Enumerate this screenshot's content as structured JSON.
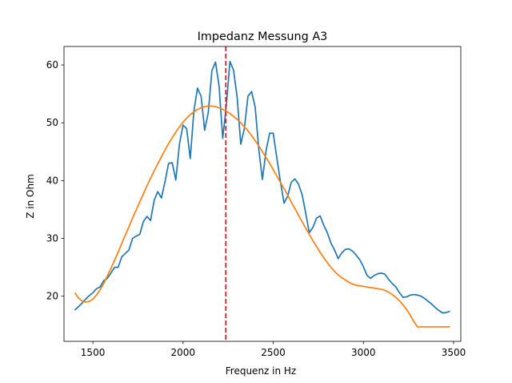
{
  "chart_data": {
    "type": "line",
    "title": "Impedanz Messung A3",
    "xlabel": "Frequenz in Hz",
    "ylabel": "Z in Ohm",
    "xlim": [
      1340,
      3540
    ],
    "ylim": [
      12.2,
      63.2
    ],
    "xticks": [
      1500,
      2000,
      2500,
      3000,
      3500
    ],
    "yticks": [
      20,
      30,
      40,
      50,
      60
    ],
    "grid": false,
    "series": [
      {
        "color": "#1f77b4",
        "x": [
          1400,
          1420,
          1440,
          1460,
          1480,
          1500,
          1520,
          1540,
          1560,
          1580,
          1600,
          1620,
          1640,
          1660,
          1680,
          1700,
          1720,
          1740,
          1760,
          1780,
          1800,
          1820,
          1840,
          1860,
          1880,
          1900,
          1920,
          1940,
          1960,
          1980,
          2000,
          2020,
          2040,
          2060,
          2080,
          2100,
          2120,
          2140,
          2160,
          2180,
          2200,
          2220,
          2240,
          2260,
          2280,
          2300,
          2320,
          2340,
          2360,
          2380,
          2400,
          2420,
          2440,
          2460,
          2480,
          2500,
          2520,
          2540,
          2560,
          2580,
          2600,
          2620,
          2640,
          2660,
          2680,
          2700,
          2720,
          2740,
          2760,
          2780,
          2800,
          2820,
          2840,
          2860,
          2880,
          2900,
          2920,
          2940,
          2960,
          2980,
          3000,
          3020,
          3040,
          3060,
          3080,
          3100,
          3120,
          3140,
          3160,
          3180,
          3200,
          3220,
          3240,
          3260,
          3280,
          3300,
          3320,
          3340,
          3360,
          3380,
          3400,
          3420,
          3440,
          3460,
          3480
        ],
        "y": [
          17.6,
          18.2,
          18.8,
          19.5,
          20.1,
          20.6,
          21.3,
          21.6,
          22.7,
          23.1,
          24.0,
          25.0,
          25.0,
          26.8,
          27.4,
          28.0,
          30.0,
          30.4,
          30.7,
          32.9,
          33.8,
          33.1,
          36.6,
          38.1,
          37.0,
          39.8,
          43.0,
          43.1,
          40.1,
          46.3,
          49.6,
          49.0,
          43.8,
          52.0,
          56.0,
          54.6,
          48.7,
          51.8,
          59.0,
          60.5,
          56.3,
          47.3,
          53.0,
          60.6,
          59.1,
          54.4,
          46.3,
          49.0,
          54.6,
          55.4,
          52.7,
          45.4,
          40.2,
          45.1,
          48.2,
          48.2,
          43.9,
          39.8,
          36.1,
          37.3,
          39.7,
          40.3,
          39.4,
          37.6,
          34.4,
          31.0,
          31.9,
          33.5,
          33.9,
          32.3,
          31.0,
          29.2,
          28.0,
          26.5,
          27.5,
          28.1,
          28.2,
          27.8,
          27.1,
          26.3,
          25.1,
          23.6,
          23.1,
          23.6,
          23.9,
          24.0,
          23.8,
          22.9,
          22.2,
          21.6,
          20.6,
          19.8,
          19.9,
          20.2,
          20.3,
          20.2,
          20.0,
          19.6,
          19.1,
          18.6,
          18.0,
          17.5,
          17.1,
          17.2,
          17.4
        ]
      },
      {
        "color": "#ff7f0e",
        "x": [
          1400,
          1420,
          1440,
          1460,
          1480,
          1500,
          1520,
          1540,
          1560,
          1580,
          1600,
          1620,
          1640,
          1660,
          1680,
          1700,
          1720,
          1740,
          1760,
          1780,
          1800,
          1820,
          1840,
          1860,
          1880,
          1900,
          1920,
          1940,
          1960,
          1980,
          2000,
          2020,
          2040,
          2060,
          2080,
          2100,
          2120,
          2140,
          2160,
          2180,
          2200,
          2220,
          2240,
          2260,
          2280,
          2300,
          2320,
          2340,
          2360,
          2380,
          2400,
          2420,
          2440,
          2460,
          2480,
          2500,
          2520,
          2540,
          2560,
          2580,
          2600,
          2620,
          2640,
          2660,
          2680,
          2700,
          2720,
          2740,
          2760,
          2780,
          2800,
          2820,
          2840,
          2860,
          2880,
          2900,
          2920,
          2940,
          2960,
          2980,
          3000,
          3020,
          3040,
          3060,
          3080,
          3100,
          3120,
          3140,
          3160,
          3180,
          3200,
          3220,
          3240,
          3260,
          3280,
          3300,
          3320,
          3340,
          3360,
          3380,
          3400,
          3420,
          3440,
          3460,
          3480
        ],
        "y": [
          20.6,
          19.7,
          19.2,
          19.0,
          19.1,
          19.5,
          20.2,
          21.1,
          22.2,
          23.5,
          24.8,
          26.2,
          27.6,
          29.1,
          30.6,
          32.0,
          33.5,
          34.9,
          36.3,
          37.7,
          39.1,
          40.4,
          41.7,
          42.9,
          44.1,
          45.3,
          46.4,
          47.4,
          48.4,
          49.3,
          50.1,
          50.8,
          51.4,
          51.9,
          52.3,
          52.6,
          52.8,
          52.9,
          52.9,
          52.8,
          52.6,
          52.3,
          52.0,
          51.6,
          51.1,
          50.6,
          50.0,
          49.3,
          48.6,
          47.8,
          46.9,
          46.0,
          45.0,
          44.0,
          43.0,
          41.9,
          40.8,
          39.7,
          38.6,
          37.5,
          36.3,
          35.2,
          34.0,
          32.9,
          31.8,
          30.7,
          29.6,
          28.6,
          27.6,
          26.7,
          25.8,
          25.0,
          24.3,
          23.7,
          23.2,
          22.8,
          22.4,
          22.1,
          21.9,
          21.8,
          21.7,
          21.6,
          21.5,
          21.4,
          21.3,
          21.2,
          21.0,
          20.7,
          20.3,
          19.8,
          19.2,
          18.5,
          17.7,
          16.7,
          15.6,
          14.7,
          14.7,
          14.7,
          14.7,
          14.7,
          14.7,
          14.7,
          14.7,
          14.7,
          14.7
        ]
      }
    ],
    "vline": {
      "x": 2237,
      "color": "#d62728",
      "style": "dashed"
    }
  }
}
